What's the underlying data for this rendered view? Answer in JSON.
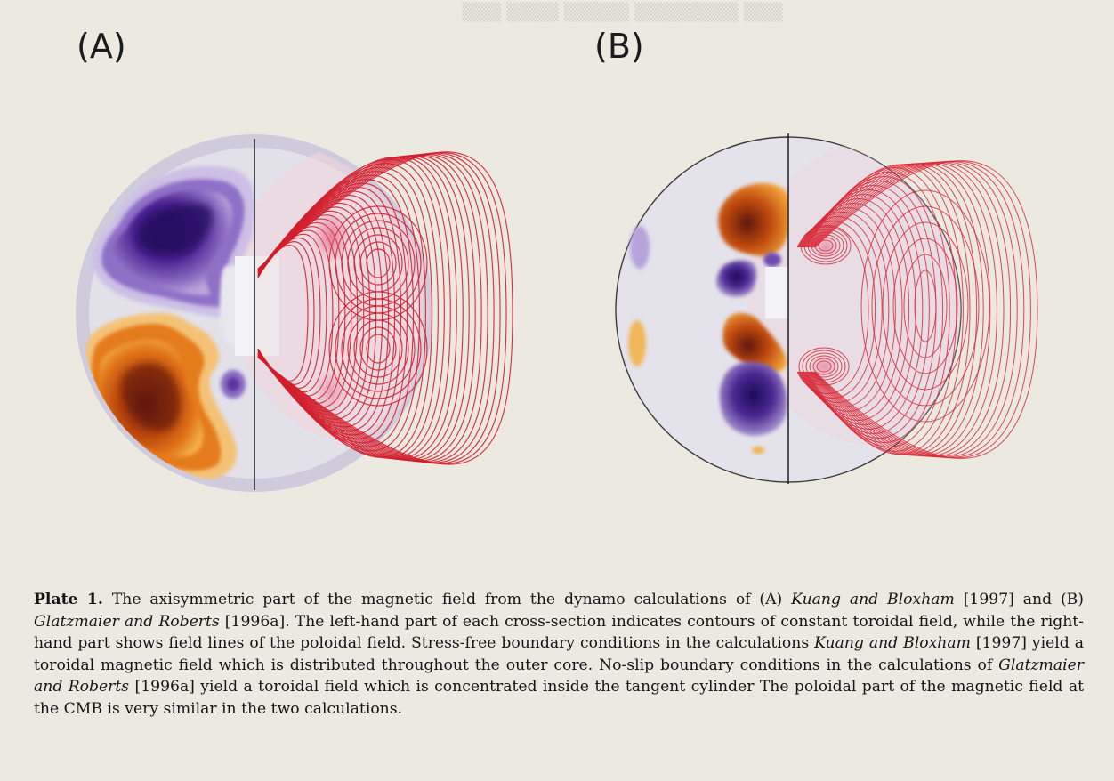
{
  "panels": {
    "a": {
      "label": "(A)"
    },
    "b": {
      "label": "(B)"
    }
  },
  "caption": {
    "plate_label": "Plate 1.",
    "segments": [
      {
        "text": "The axisymmetric part of the magnetic field from the dynamo calculations of (A) ",
        "style": "normal"
      },
      {
        "text": "Kuang and Bloxham",
        "style": "italic"
      },
      {
        "text": " [1997] and (B) ",
        "style": "normal"
      },
      {
        "text": "Glatzmaier and Roberts",
        "style": "italic"
      },
      {
        "text": " [1996a]. The left-hand part of each cross-section indicates contours of constant toroidal field, while the right-hand part shows field lines of the poloidal field. Stress-free boundary conditions in the calculations ",
        "style": "normal"
      },
      {
        "text": "Kuang and Bloxham",
        "style": "italic"
      },
      {
        "text": " [1997] yield a toroidal magnetic field which is distributed throughout the outer core. No-slip boundary conditions in the calculations of ",
        "style": "normal"
      },
      {
        "text": "Glatzmaier and Roberts",
        "style": "italic"
      },
      {
        "text": " [1996a] yield a toroidal field which is concentrated inside the tangent cylinder The poloidal part of the magnetic field at the CMB is very similar in the two calculations.",
        "style": "normal"
      }
    ]
  },
  "colors": {
    "paper": "#ece9e1",
    "field_line_red": "#d11f2e",
    "toroidal_purple": "#3f1c86",
    "toroidal_orange": "#d8630f",
    "core_disc": "#dcdae2"
  }
}
